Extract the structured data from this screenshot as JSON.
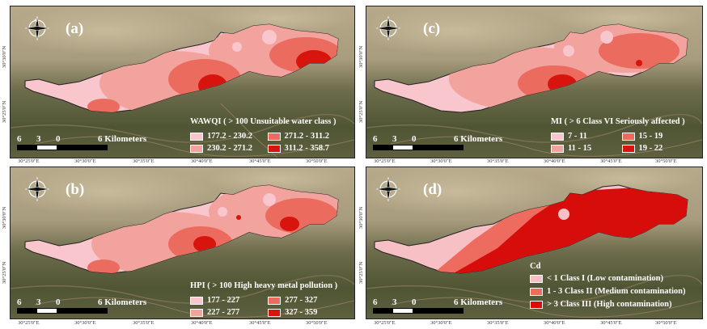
{
  "panels": {
    "a": {
      "label": "(a)",
      "legend_title": "WAWQI ( > 100 Unsuitable water class )",
      "classes": [
        "177.2 - 230.2",
        "271.2 - 311.2",
        "230.2 - 271.2",
        "311.2 - 358.7"
      ]
    },
    "c": {
      "label": "(c)",
      "legend_title": "MI ( > 6 Class VI Seriously affected )",
      "classes": [
        "7 - 11",
        "15 - 19",
        "11 - 15",
        "19 - 22"
      ]
    },
    "b": {
      "label": "(b)",
      "legend_title": "HPI ( > 100 High heavy metal pollution )",
      "classes": [
        "177 - 227",
        "277 - 327",
        "227 - 277",
        "327 - 359"
      ]
    },
    "d": {
      "label": "(d)",
      "legend_title": "Cd",
      "classes": [
        "< 1 Class I (Low contamination)",
        "1 - 3 Class II (Medium contamination)",
        "> 3 Class III (High contamination)"
      ]
    }
  },
  "scale_bar": {
    "n0": "6",
    "n1": "3",
    "n2": "0",
    "n3": "6",
    "unit": "Kilometers"
  },
  "lon_ticks": [
    "30°25'0\"E",
    "30°30'0\"E",
    "30°35'0\"E",
    "30°40'0\"E",
    "30°45'0\"E",
    "30°50'0\"E"
  ],
  "lat_ticks": [
    "30°30'0\"N",
    "30°25'0\"N"
  ],
  "compass": {
    "n": "N",
    "s": "S",
    "e": "E",
    "w": "W"
  },
  "colors": {
    "class1": "#f8c6cc",
    "class2": "#f3a39e",
    "class3": "#ec6b5f",
    "class4": "#d8140e",
    "cd_class1": "#f6c0c4",
    "cd_class2": "#ee6c5f",
    "cd_class3": "#d60d0b"
  },
  "icons": {
    "compass": "compass-rose-icon"
  }
}
